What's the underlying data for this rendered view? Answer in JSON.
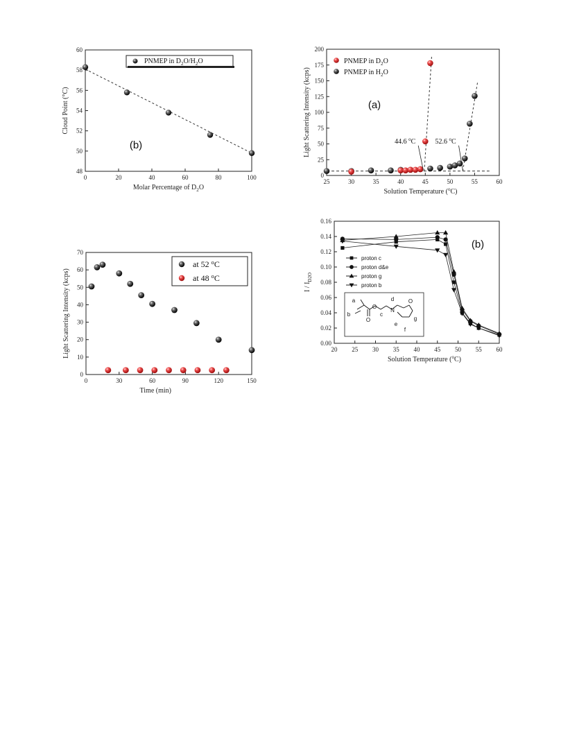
{
  "chart_data": [
    {
      "id": "cloud-point",
      "type": "scatter",
      "panel_label": "(b)",
      "xlabel": "Molar Percentage of D2O",
      "ylabel": "Cloud Point (°C)",
      "xlim": [
        0,
        100
      ],
      "ylim": [
        48,
        60
      ],
      "xticks": [
        0,
        20,
        40,
        60,
        80,
        100
      ],
      "yticks": [
        48,
        50,
        52,
        54,
        56,
        58,
        60
      ],
      "series": [
        {
          "name": "PNMEP in D2O/H2O",
          "color": "#111111",
          "x": [
            0,
            25,
            50,
            75,
            100
          ],
          "y": [
            58.3,
            55.8,
            53.8,
            51.6,
            49.8
          ]
        }
      ],
      "fit": {
        "style": "dashed",
        "x": [
          0,
          100
        ],
        "y": [
          58.1,
          49.8
        ]
      },
      "legend": "top"
    },
    {
      "id": "lsi-temperature",
      "type": "scatter",
      "panel_label": "(a)",
      "xlabel": "Solution Temperature (°C)",
      "ylabel": "Light Scattering Intensity (kcps)",
      "xlim": [
        25,
        60
      ],
      "ylim": [
        0,
        200
      ],
      "xticks": [
        25,
        30,
        35,
        40,
        45,
        50,
        55,
        60
      ],
      "yticks": [
        0,
        25,
        50,
        75,
        100,
        125,
        150,
        175,
        200
      ],
      "series": [
        {
          "name": "PNMEP in D2O",
          "color": "#e03a3a",
          "x": [
            30,
            40,
            41,
            42,
            43,
            44,
            45,
            46
          ],
          "y": [
            6,
            8,
            8,
            9,
            9,
            10,
            54,
            178
          ]
        },
        {
          "name": "PNMEP in H2O",
          "color": "#111111",
          "x": [
            25,
            30,
            34,
            38,
            40,
            42,
            44,
            46,
            48,
            50,
            51,
            52,
            53,
            54,
            55
          ],
          "y": [
            7,
            7,
            8,
            8,
            9,
            9,
            10,
            11,
            12,
            14,
            16,
            19,
            27,
            82,
            126
          ]
        }
      ],
      "baseline": {
        "x": [
          25,
          58
        ],
        "y": [
          7,
          7
        ]
      },
      "guides": [
        {
          "x": [
            44.8,
            46.3
          ],
          "y": [
            7,
            190
          ]
        },
        {
          "x": [
            52.6,
            55.6
          ],
          "y": [
            7,
            148
          ]
        }
      ],
      "annotations": [
        {
          "text": "44.6 °C",
          "x": 38.8,
          "y": 54,
          "arrow_to": [
            44.6,
            8
          ]
        },
        {
          "text": "52.6 °C",
          "x": 47.0,
          "y": 54,
          "arrow_to": [
            52.6,
            8
          ]
        }
      ],
      "legend": "top-left"
    },
    {
      "id": "lsi-time",
      "type": "scatter",
      "xlabel": "Time (min)",
      "ylabel": "Light Scattering Intensity (kcps)",
      "xlim": [
        0,
        150
      ],
      "ylim": [
        0,
        70
      ],
      "xticks": [
        0,
        30,
        60,
        90,
        120,
        150
      ],
      "yticks": [
        0,
        10,
        20,
        30,
        40,
        50,
        60,
        70
      ],
      "series": [
        {
          "name": "at 52 °C",
          "color": "#111111",
          "x": [
            5,
            10,
            15,
            30,
            40,
            50,
            60,
            80,
            100,
            120,
            150
          ],
          "y": [
            50.5,
            61.5,
            63,
            58,
            52,
            45.5,
            40.5,
            37,
            29.5,
            20,
            14
          ]
        },
        {
          "name": "at 48 °C",
          "color": "#e03a3a",
          "x": [
            20,
            36,
            49,
            62,
            75,
            88,
            101,
            114,
            127
          ],
          "y": [
            2.5,
            2.5,
            2.5,
            2.5,
            2.5,
            2.5,
            2.5,
            2.5,
            2.5
          ]
        }
      ],
      "legend": "top-right"
    },
    {
      "id": "nmr-ratio",
      "type": "line",
      "panel_label": "(b)",
      "xlabel": "Solution Temperature (°C)",
      "ylabel": "I / ID2O",
      "xlim": [
        20,
        60
      ],
      "ylim": [
        0,
        0.16
      ],
      "xticks": [
        20,
        25,
        30,
        35,
        40,
        45,
        50,
        55,
        60
      ],
      "yticks": [
        "0.00",
        "0.02",
        "0.04",
        "0.06",
        "0.08",
        "0.10",
        "0.12",
        "0.14",
        "0.16"
      ],
      "series": [
        {
          "name": "proton c",
          "marker": "square",
          "x": [
            22,
            35,
            45,
            47,
            49,
            51,
            53,
            55,
            60
          ],
          "y": [
            0.125,
            0.133,
            0.136,
            0.13,
            0.08,
            0.04,
            0.026,
            0.02,
            0.011
          ]
        },
        {
          "name": "proton d&e",
          "marker": "circle",
          "x": [
            22,
            35,
            45,
            47,
            49,
            51,
            53,
            55,
            60
          ],
          "y": [
            0.137,
            0.136,
            0.139,
            0.136,
            0.09,
            0.044,
            0.029,
            0.023,
            0.012
          ]
        },
        {
          "name": "proton g",
          "marker": "triangle-up",
          "x": [
            22,
            35,
            45,
            47,
            49,
            51,
            53,
            55,
            60
          ],
          "y": [
            0.135,
            0.14,
            0.145,
            0.145,
            0.094,
            0.046,
            0.03,
            0.024,
            0.013
          ]
        },
        {
          "name": "proton b",
          "marker": "triangle-down",
          "x": [
            22,
            35,
            45,
            47,
            49,
            51,
            53,
            55,
            60
          ],
          "y": [
            0.134,
            0.127,
            0.122,
            0.116,
            0.07,
            0.039,
            0.025,
            0.02,
            0.01
          ]
        }
      ],
      "structure_labels": [
        "a",
        "b",
        "c",
        "d",
        "e",
        "f",
        "g",
        "O",
        "O",
        "O",
        "N"
      ],
      "legend": "left"
    }
  ]
}
